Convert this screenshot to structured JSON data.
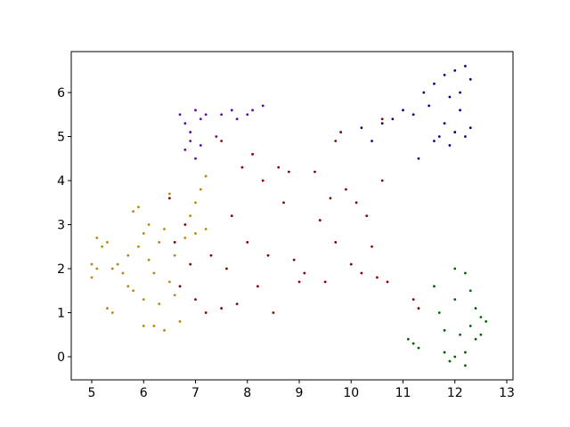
{
  "chart_data": {
    "type": "scatter",
    "xlim": [
      4.605,
      13.12
    ],
    "ylim": [
      -0.525,
      6.93
    ],
    "xticks": [
      5,
      6,
      7,
      8,
      9,
      10,
      11,
      12,
      13
    ],
    "yticks": [
      0,
      1,
      2,
      3,
      4,
      5,
      6
    ],
    "series": [
      {
        "color": "#b8860b",
        "x": [
          5.0,
          5.0,
          5.1,
          5.1,
          5.2,
          5.3,
          5.3,
          5.4,
          5.4,
          5.5,
          5.6,
          5.7,
          5.7,
          5.8,
          5.8,
          5.9,
          5.9,
          6.0,
          6.0,
          6.0,
          6.1,
          6.1,
          6.2,
          6.2,
          6.3,
          6.3,
          6.4,
          6.4,
          6.5,
          6.5,
          6.6,
          6.7,
          6.8,
          6.9,
          7.0,
          7.1,
          7.2,
          7.2,
          7.0,
          6.6
        ],
        "y": [
          2.1,
          1.8,
          2.0,
          2.7,
          2.5,
          2.6,
          1.1,
          1.0,
          2.0,
          2.1,
          1.9,
          2.3,
          1.6,
          3.3,
          1.5,
          3.4,
          2.5,
          1.3,
          0.7,
          2.8,
          3.0,
          2.2,
          0.7,
          1.9,
          2.6,
          1.2,
          0.6,
          2.9,
          3.7,
          1.7,
          2.3,
          0.8,
          2.7,
          3.2,
          2.8,
          3.8,
          2.9,
          4.1,
          3.5,
          1.4
        ]
      },
      {
        "color": "#8b0000",
        "x": [
          6.5,
          6.6,
          6.7,
          6.8,
          6.9,
          7.0,
          7.2,
          7.3,
          7.5,
          7.6,
          7.7,
          7.8,
          7.9,
          8.0,
          8.1,
          8.2,
          8.3,
          8.4,
          8.5,
          8.6,
          8.7,
          8.8,
          8.9,
          9.0,
          9.1,
          9.3,
          9.4,
          9.5,
          9.6,
          9.7,
          9.8,
          9.9,
          10.0,
          10.1,
          10.2,
          10.3,
          10.4,
          10.5,
          10.6,
          10.7,
          11.2,
          11.3,
          10.6,
          7.5,
          9.7
        ],
        "y": [
          3.6,
          2.6,
          1.6,
          3.0,
          2.1,
          1.3,
          1.0,
          2.3,
          1.1,
          2.0,
          3.2,
          1.2,
          4.3,
          2.6,
          4.6,
          1.6,
          4.0,
          2.3,
          1.0,
          4.3,
          3.5,
          4.2,
          2.2,
          1.7,
          1.9,
          4.2,
          3.1,
          1.7,
          3.6,
          2.6,
          5.1,
          3.8,
          2.1,
          3.5,
          1.9,
          3.2,
          2.5,
          1.8,
          4.0,
          1.7,
          1.3,
          1.1,
          5.4,
          4.9,
          4.9
        ]
      },
      {
        "color": "#5a0a9e",
        "x": [
          6.7,
          6.8,
          6.8,
          6.9,
          7.0,
          7.0,
          7.1,
          7.2,
          7.4,
          7.5,
          7.7,
          7.8,
          8.0,
          8.1,
          8.3,
          6.9,
          7.1
        ],
        "y": [
          5.5,
          5.3,
          4.7,
          5.1,
          5.6,
          4.5,
          5.4,
          5.5,
          5.0,
          5.5,
          5.6,
          5.4,
          5.5,
          5.6,
          5.7,
          4.9,
          4.8
        ]
      },
      {
        "color": "#00008b",
        "x": [
          10.2,
          10.4,
          10.6,
          10.8,
          11.0,
          11.2,
          11.3,
          11.4,
          11.5,
          11.6,
          11.7,
          11.8,
          11.8,
          11.9,
          12.0,
          12.0,
          12.1,
          12.2,
          12.2,
          12.3,
          12.3,
          11.9,
          11.6,
          12.1
        ],
        "y": [
          5.2,
          4.9,
          5.3,
          5.4,
          5.6,
          5.5,
          4.5,
          6.0,
          5.7,
          6.2,
          5.0,
          6.4,
          5.3,
          5.9,
          6.5,
          5.1,
          5.6,
          6.6,
          5.0,
          6.3,
          5.2,
          4.8,
          4.9,
          6.0
        ]
      },
      {
        "color": "#006400",
        "x": [
          11.1,
          11.2,
          11.3,
          11.6,
          11.7,
          11.8,
          11.8,
          11.9,
          12.0,
          12.0,
          12.1,
          12.2,
          12.2,
          12.3,
          12.3,
          12.4,
          12.4,
          12.5,
          12.6,
          12.2,
          12.0,
          12.5
        ],
        "y": [
          0.4,
          0.3,
          0.2,
          1.6,
          1.0,
          0.6,
          0.1,
          -0.1,
          2.0,
          1.3,
          0.5,
          1.9,
          -0.2,
          1.5,
          0.7,
          1.1,
          0.4,
          0.9,
          0.8,
          0.1,
          0.0,
          0.5
        ]
      }
    ]
  }
}
